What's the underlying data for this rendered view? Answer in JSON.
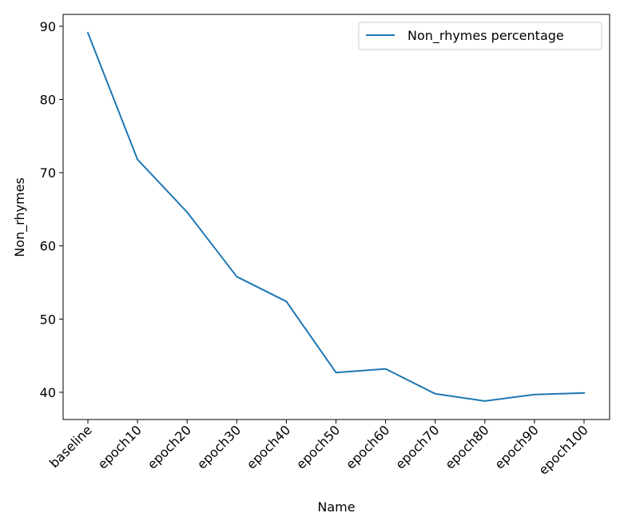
{
  "chart_data": {
    "type": "line",
    "categories": [
      "baseline",
      "epoch10",
      "epoch20",
      "epoch30",
      "epoch40",
      "epoch50",
      "epoch60",
      "epoch70",
      "epoch80",
      "epoch90",
      "epoch100"
    ],
    "series": [
      {
        "name": "Non_rhymes percentage",
        "color": "#1f77b4",
        "values": [
          89.1,
          71.8,
          64.6,
          55.8,
          52.4,
          42.7,
          43.2,
          39.8,
          38.8,
          39.7,
          39.9
        ]
      }
    ],
    "xlabel": "Name",
    "ylabel": "Non_rhymes",
    "yticks": [
      40,
      50,
      60,
      70,
      80,
      90
    ],
    "ylim": [
      36.28,
      91.62
    ],
    "legend_position": "top-right",
    "grid": false
  }
}
